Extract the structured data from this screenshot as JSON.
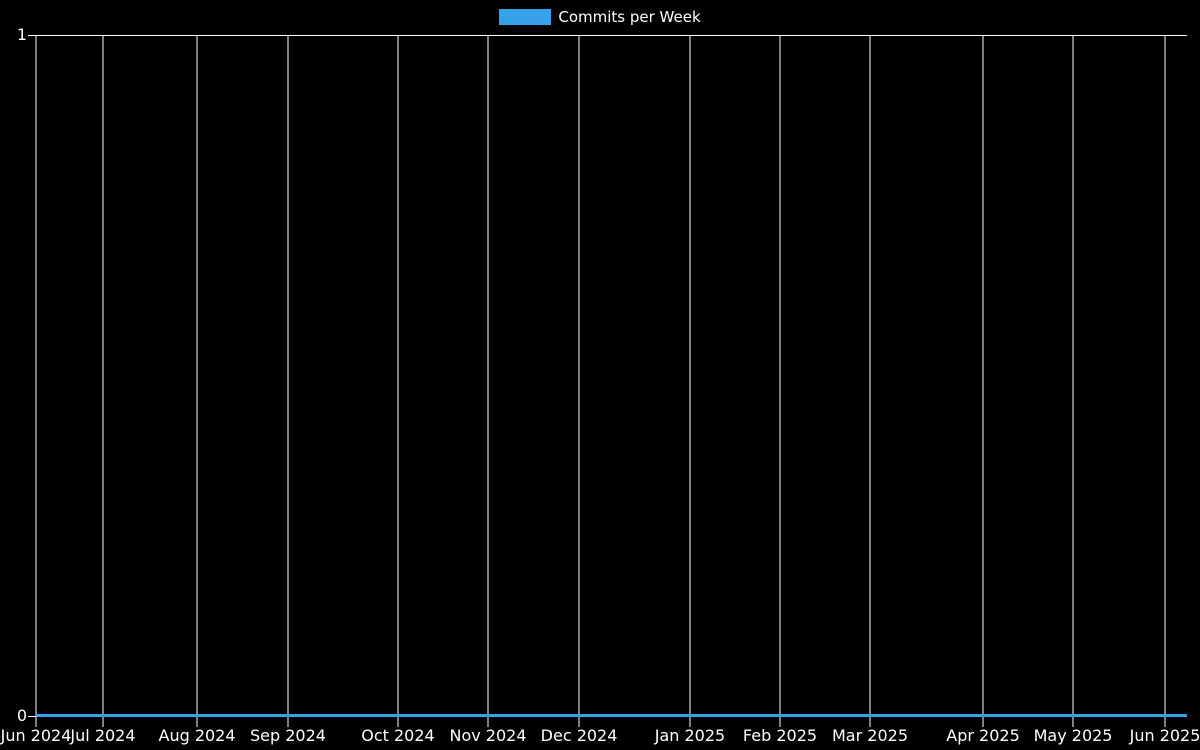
{
  "page": {
    "background": "#000000"
  },
  "legend": {
    "label": "Commits per Week",
    "swatch_color": "#36a2eb"
  },
  "chart_data": {
    "type": "line",
    "title": "Commits per Week",
    "xlabel": "",
    "ylabel": "",
    "ylim": [
      0,
      1
    ],
    "grid": true,
    "legend_position": "top-center",
    "colors": {
      "background": "#000000",
      "grid": "#ffffff",
      "text": "#ffffff",
      "line": "#36a2eb"
    },
    "series": [
      {
        "name": "Commits per Week",
        "color": "#36a2eb",
        "x": [
          "Jun 2024",
          "Jul 2024",
          "Aug 2024",
          "Sep 2024",
          "Oct 2024",
          "Nov 2024",
          "Dec 2024",
          "Jan 2025",
          "Feb 2025",
          "Mar 2025",
          "Apr 2025",
          "May 2025",
          "Jun 2025"
        ],
        "values": [
          0,
          0,
          0,
          0,
          0,
          0,
          0,
          0,
          0,
          0,
          0,
          0,
          0
        ]
      }
    ],
    "y_ticks": [
      {
        "label": "1",
        "pos": 0
      },
      {
        "label": "0",
        "pos": 1
      }
    ],
    "x_ticks": [
      {
        "label": "Jun 2024",
        "pos": 0.0
      },
      {
        "label": "Jul 2024",
        "pos": 0.0582
      },
      {
        "label": "Aug 2024",
        "pos": 0.1399
      },
      {
        "label": "Sep 2024",
        "pos": 0.2189
      },
      {
        "label": "Oct 2024",
        "pos": 0.3145
      },
      {
        "label": "Nov 2024",
        "pos": 0.3927
      },
      {
        "label": "Dec 2024",
        "pos": 0.4718
      },
      {
        "label": "Jan 2025",
        "pos": 0.5682
      },
      {
        "label": "Feb 2025",
        "pos": 0.6464
      },
      {
        "label": "Mar 2025",
        "pos": 0.7246
      },
      {
        "label": "Apr 2025",
        "pos": 0.8228
      },
      {
        "label": "May 2025",
        "pos": 0.901
      },
      {
        "label": "Jun 2025",
        "pos": 0.9809
      }
    ]
  }
}
